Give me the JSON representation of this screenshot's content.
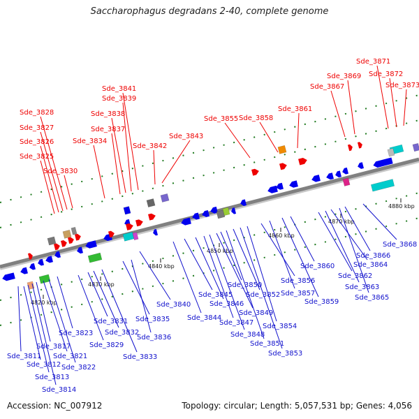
{
  "title": "Saccharophagus degradans 2-40, complete genome",
  "footer": {
    "accession": "Accession: NC_007912",
    "topology": "Topology: circular; Length: 5,057,531 bp; Genes: 4,056"
  },
  "colors": {
    "forward_label": "#ee0000",
    "reverse_label": "#1010cc",
    "backbone": "#808080"
  },
  "kbp_ticks": [
    "4820 kbp",
    "4830 kbp",
    "4840 kbp",
    "4850 kbp",
    "4860 kbp",
    "4870 kbp",
    "4880 kbp"
  ],
  "forward_genes": [
    "Sde_3825",
    "Sde_3826",
    "Sde_3827",
    "Sde_3828",
    "Sde_3830",
    "Sde_3834",
    "Sde_3837",
    "Sde_3838",
    "Sde_3839",
    "Sde_3841",
    "Sde_3842",
    "Sde_3843",
    "Sde_3855",
    "Sde_3858",
    "Sde_3861",
    "Sde_3867",
    "Sde_3869",
    "Sde_3871",
    "Sde_3872",
    "Sde_3873"
  ],
  "reverse_genes": [
    "Sde_3811",
    "Sde_3812",
    "Sde_3813",
    "Sde_3814",
    "Sde_3817",
    "Sde_3821",
    "Sde_3822",
    "Sde_3823",
    "Sde_3829",
    "Sde_3831",
    "Sde_3832",
    "Sde_3833",
    "Sde_3835",
    "Sde_3836",
    "Sde_3840",
    "Sde_3844",
    "Sde_3845",
    "Sde_3846",
    "Sde_3847",
    "Sde_3848",
    "Sde_3849",
    "Sde_3850",
    "Sde_3851",
    "Sde_3852",
    "Sde_3853",
    "Sde_3854",
    "Sde_3856",
    "Sde_3857",
    "Sde_3859",
    "Sde_3860",
    "Sde_3862",
    "Sde_3863",
    "Sde_3864",
    "Sde_3865",
    "Sde_3866",
    "Sde_3868"
  ]
}
